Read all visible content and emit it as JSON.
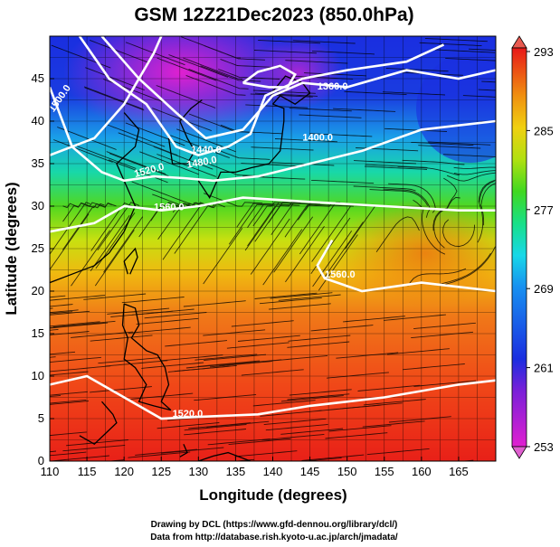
{
  "title": "GSM 12Z21Dec2023 (850.0hPa)",
  "x_axis": {
    "label": "Longitude (degrees)",
    "ticks": [
      "110",
      "115",
      "120",
      "125",
      "130",
      "135",
      "140",
      "145",
      "150",
      "155",
      "160",
      "165"
    ]
  },
  "y_axis": {
    "label": "Latitude  (degrees)",
    "ticks": [
      "0",
      "5",
      "10",
      "15",
      "20",
      "25",
      "30",
      "35",
      "40",
      "45"
    ]
  },
  "colorbar": {
    "ticks": [
      "253",
      "261",
      "269",
      "277",
      "285",
      "293"
    ],
    "colors": [
      "#e020d0",
      "#7a20d8",
      "#1a2ee0",
      "#1890f0",
      "#18d8e8",
      "#18e088",
      "#40d820",
      "#b0e010",
      "#f0d010",
      "#f09010",
      "#f04010",
      "#e81818"
    ]
  },
  "contour_labels": [
    {
      "text": "1500.0",
      "lon": 110.5,
      "lat": 41.0,
      "angle": 55
    },
    {
      "text": "1440.0",
      "lon": 129.0,
      "lat": 36.3,
      "angle": 0
    },
    {
      "text": "1480.0",
      "lon": 128.5,
      "lat": 34.5,
      "angle": 10
    },
    {
      "text": "1520.0",
      "lon": 121.5,
      "lat": 33.4,
      "angle": 15
    },
    {
      "text": "1560.0",
      "lon": 124.0,
      "lat": 29.5,
      "angle": 0
    },
    {
      "text": "1360.0",
      "lon": 146.0,
      "lat": 43.7,
      "angle": 0
    },
    {
      "text": "1400.0",
      "lon": 144.0,
      "lat": 37.7,
      "angle": 0
    },
    {
      "text": "1560.0",
      "lon": 147.0,
      "lat": 21.6,
      "angle": 0
    },
    {
      "text": "1520.0",
      "lon": 126.5,
      "lat": 5.2,
      "angle": 0
    }
  ],
  "credits": {
    "line1": "Drawing by DCL (https://www.gfd-dennou.org/library/dcl/)",
    "line2": "Data from http://database.rish.kyoto-u.ac.jp/arch/jmadata/"
  }
}
